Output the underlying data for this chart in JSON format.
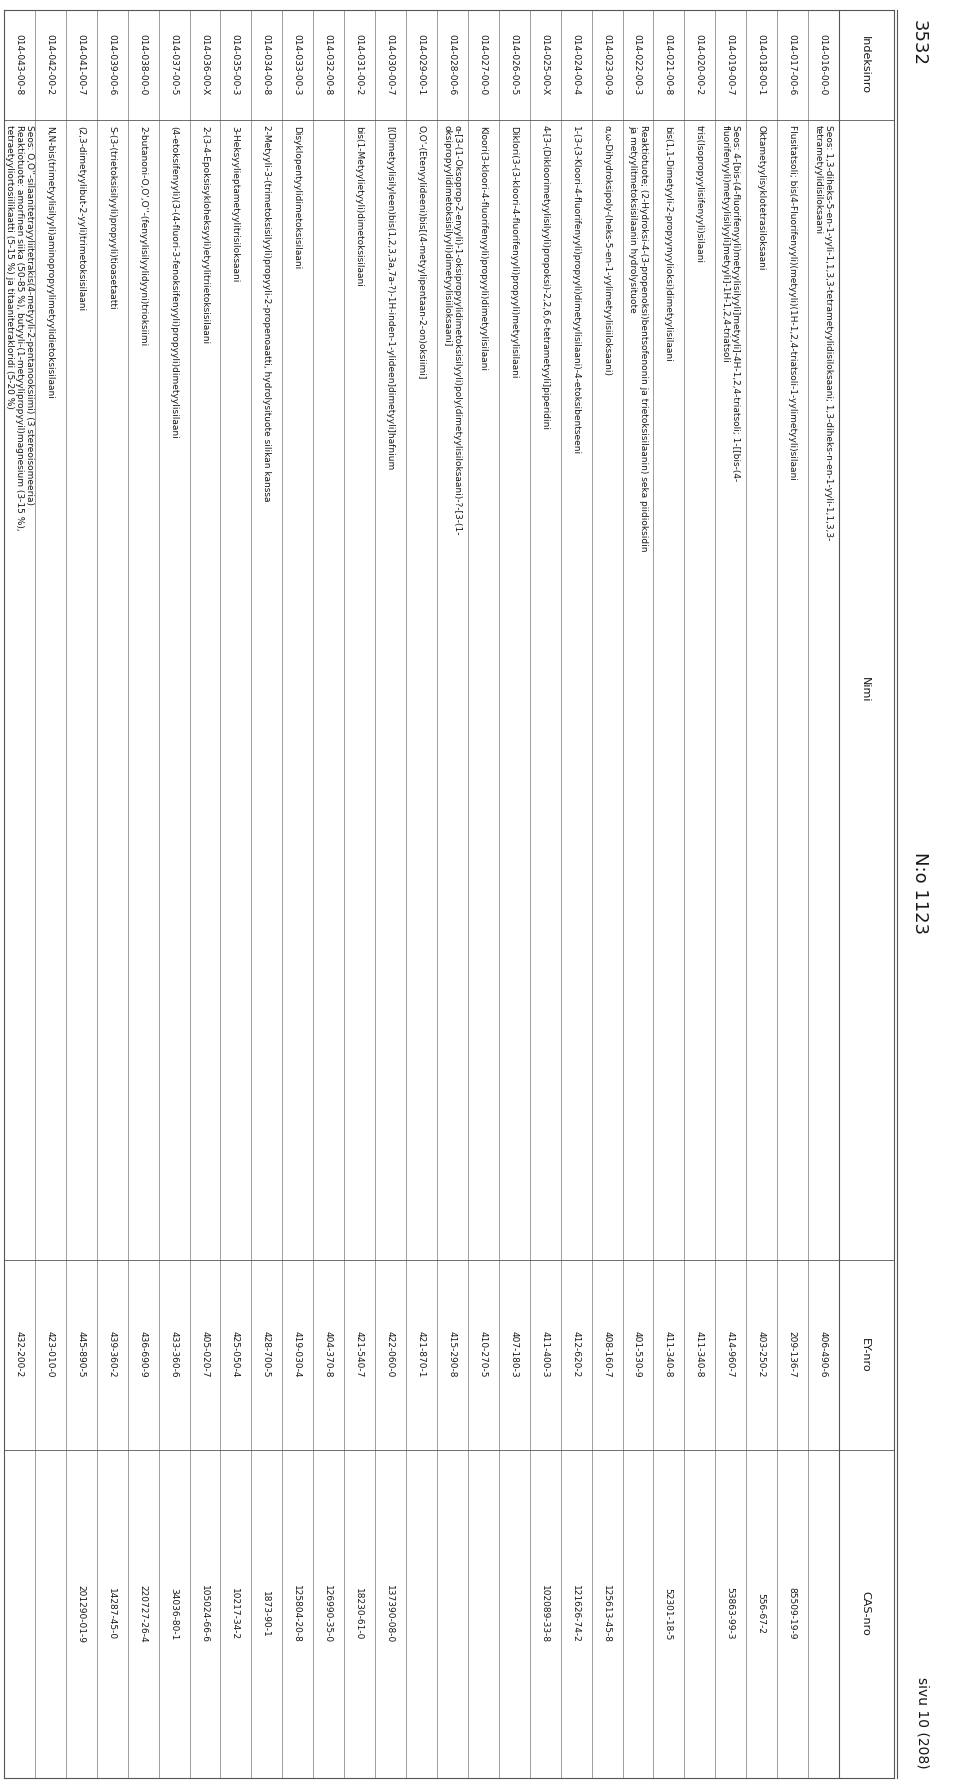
{
  "page_left": "3532",
  "page_center": "N:o 1123",
  "page_right": "sivu 10 (208)",
  "col_headers": [
    "Indeksinro",
    "Nimi",
    "EY-nro",
    "CAS-nro"
  ],
  "rows": [
    {
      "index": "014-016-00-0",
      "name": "Seos: 1,3-diheks-5-en-1-yyli-1,1,3,3-tetrametyylidisiloksaani; 1,3-diheks-n-en-1-yyli-1,1,3,3-\ntetrametyylidisiloksaani",
      "ey": "406-490-6",
      "cas": ""
    },
    {
      "index": "014-017-00-6",
      "name": "Flusitatsoli; bis(4-Fluorifenyyli)(metyyli)(1H-1,2,4-triatsoli-1-yylimetyyli)silaani",
      "ey": "209-136-7",
      "cas": "85509-19-9"
    },
    {
      "index": "014-018-00-1",
      "name": "Oktametyylisyklotetrasiloksaani",
      "ey": "403-250-2",
      "cas": "556-67-2"
    },
    {
      "index": "014-019-00-7",
      "name": "Seos: 4-[bis-(4-fluorifenyyli)metyylisilyyli]metyyli]-4H-1,2,4-triatsoli; 1-[[bis-(4-\nfluorifenyyli)metyylisilyyli]metyyli]-1H-1,2,4-triatsoli",
      "ey": "414-960-7",
      "cas": "53863-99-3"
    },
    {
      "index": "014-020-00-2",
      "name": "tris(Isopropyylisifenyyli)silaani",
      "ey": "411-340-8",
      "cas": ""
    },
    {
      "index": "014-021-00-8",
      "name": "bis(1,1-Dimetyyli-2-propyynyylioksi)dimetyylisilaani",
      "ey": "411-340-8",
      "cas": "52301-18-5"
    },
    {
      "index": "014-022-00-3",
      "name": "Reaktiotuote; (2-Hydroksi-4-(3-propenoksi)bentsofenonin ja trietoksisilaanin) seka piidioksidin\nja metyylitmetoksisilaanin hydrolysituote",
      "ey": "401-530-9",
      "cas": ""
    },
    {
      "index": "014-023-00-9",
      "name": "α,ω-Dihydroksipoly-(heks-5-en-1-yylimetyylisiiloksaani)",
      "ey": "408-160-7",
      "cas": "125613-45-8"
    },
    {
      "index": "014-024-00-4",
      "name": "1-(3-(3-Kloori-4-fluorifenyyli)propyyli)dimetyylisilaani)-4-etoksibentseeni",
      "ey": "412-620-2",
      "cas": "121626-74-2"
    },
    {
      "index": "014-025-00-X",
      "name": "4-[3-(Dikloorimetyylisilyyli)propoksi)-2,2,6,6-tetrametyyli]piperidini",
      "ey": "411-400-3",
      "cas": "102089-33-8"
    },
    {
      "index": "014-026-00-5",
      "name": "Diklori(3-(3-kloori-4-fluorifenyyli)propyyli)metyylisilaani",
      "ey": "407-180-3",
      "cas": ""
    },
    {
      "index": "014-027-00-0",
      "name": "Kloori(3-kloori-4-fluorifenyyli)propyyli)dimetyylisilaani",
      "ey": "410-270-5",
      "cas": ""
    },
    {
      "index": "014-028-00-6",
      "name": "α-[3-(1-Oksoprop-2-enyyli)-1-oksipropyylidimetoksisilyyli)poly(dimetyylisiloksaani)-?-[3-(1-\noksipropyylidimetoksisilyyli)dimetyylisiiloksaani]",
      "ey": "415-290-8",
      "cas": ""
    },
    {
      "index": "014-029-00-1",
      "name": "O,O'-(Etenyylideeni)bis[(4-metyylipentaan-2-on)oksiimi]",
      "ey": "421-870-1",
      "cas": ""
    },
    {
      "index": "014-030-00-7",
      "name": "[(Dimetyylisilyleen)bis(1,2,3,3a,7a-?)-1H-inden-1-ylideen]dimetyyli]hafnium",
      "ey": "422-060-0",
      "cas": "137390-08-0"
    },
    {
      "index": "014-031-00-2",
      "name": "bis(1-Metyylietyyli)dimetoksisilaani",
      "ey": "421-540-7",
      "cas": "18230-61-0"
    },
    {
      "index": "014-032-00-8",
      "name": "",
      "ey": "404-370-8",
      "cas": "126990-35-0"
    },
    {
      "index": "014-033-00-3",
      "name": "Disyklopentyylidimetoksisilaani",
      "ey": "419-030-4",
      "cas": "125804-20-8"
    },
    {
      "index": "014-034-00-8",
      "name": "2-Metyyli-3-(trimetoksisilyyli)propyyli-2-propenoaatti, hydrolysituote silikan kanssa",
      "ey": "428-700-5",
      "cas": "1873-90-1"
    },
    {
      "index": "014-035-00-3",
      "name": "3-Heksyylieptametyylitrisiloksaani",
      "ey": "425-050-4",
      "cas": "10217-34-2"
    },
    {
      "index": "014-036-00-X",
      "name": "2-(3-4-Epoksisykloheksyyli)etyylitriietoksisilaani",
      "ey": "405-020-7",
      "cas": "105024-66-6"
    },
    {
      "index": "014-037-00-5",
      "name": "(4-etoksifenyyli)(3-(4-fluori-3-fenoksifenyyli)propyyli)dimetyylisilaani",
      "ey": "433-360-6",
      "cas": "34036-80-1"
    },
    {
      "index": "014-038-00-0",
      "name": "2-butanoni-O,O',O''-(fenyylisilyylidyyni)trioksiimi",
      "ey": "436-690-9",
      "cas": "220727-26-4"
    },
    {
      "index": "014-039-00-6",
      "name": "S-(3-(trietoksisilyyli)propyyli)tioasetaatti",
      "ey": "439-360-2",
      "cas": "14287-45-0"
    },
    {
      "index": "014-041-00-7",
      "name": "(2,3-dimetyylibut-2-yyli)trimetoksisilaani",
      "ey": "445-890-5",
      "cas": "201290-01-9"
    },
    {
      "index": "014-042-00-2",
      "name": "N,N-bis(trimetyylisilyyli)aminopropyylimetyylidietoksisilaani",
      "ey": "423-010-0",
      "cas": ""
    },
    {
      "index": "014-043-00-8",
      "name": "Seos: O,O''-silaanitetrayyliitetrakis(4-metyyli-2-pentanooksiimi) (3 stereoisomeeria)\nReaktiotuote: amorfinen siika (50-85 %), butyyli-(1-metyylipropyyil)magnesium (3-15 %),\ntetraetyyliortosiilikaatti (5-15 %) ja titaanitetrakloridi (5-20 %)",
      "ey": "432-200-2",
      "cas": ""
    }
  ],
  "background_color": "#ffffff",
  "text_color": "#1a1a1a",
  "line_color": "#555555",
  "font_size": 6.5,
  "header_font_size": 8.0,
  "title_font_size": 13
}
